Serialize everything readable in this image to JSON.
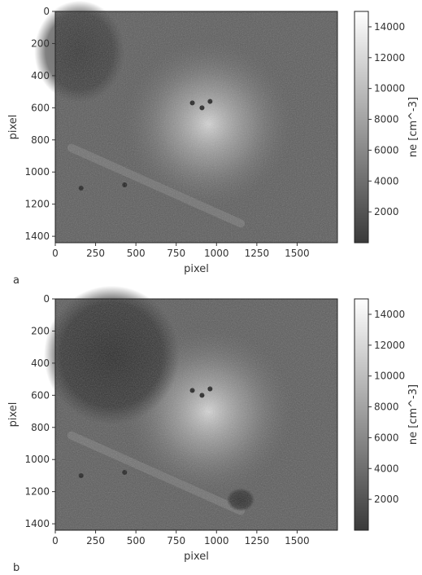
{
  "chart_data": [
    {
      "type": "heatmap",
      "panel_label": "a",
      "xlabel": "pixel",
      "ylabel": "pixel",
      "xlim": [
        0,
        1750
      ],
      "ylim": [
        1440,
        0
      ],
      "x_ticks": [
        0,
        250,
        500,
        750,
        1000,
        1250,
        1500
      ],
      "y_ticks": [
        0,
        200,
        400,
        600,
        800,
        1000,
        1200,
        1400
      ],
      "colorbar": {
        "label": "ne [cm^-3]",
        "range": [
          0,
          15000
        ],
        "ticks": [
          2000,
          4000,
          6000,
          8000,
          10000,
          12000,
          14000
        ],
        "colormap": "gray"
      },
      "features": {
        "bright_region_center": [
          950,
          700
        ],
        "dark_patches": [
          {
            "center": [
              150,
              250
            ],
            "extent": "small sparse"
          }
        ],
        "dark_spots": [
          [
            850,
            570
          ],
          [
            910,
            600
          ],
          [
            960,
            560
          ],
          [
            160,
            1100
          ],
          [
            430,
            1080
          ]
        ]
      }
    },
    {
      "type": "heatmap",
      "panel_label": "b",
      "xlabel": "pixel",
      "ylabel": "pixel",
      "xlim": [
        0,
        1750
      ],
      "ylim": [
        1440,
        0
      ],
      "x_ticks": [
        0,
        250,
        500,
        750,
        1000,
        1250,
        1500
      ],
      "y_ticks": [
        0,
        200,
        400,
        600,
        800,
        1000,
        1200,
        1400
      ],
      "colorbar": {
        "label": "ne [cm^-3]",
        "range": [
          0,
          15000
        ],
        "ticks": [
          2000,
          4000,
          6000,
          8000,
          10000,
          12000,
          14000
        ],
        "colormap": "gray"
      },
      "features": {
        "bright_region_center": [
          950,
          700
        ],
        "dark_patches": [
          {
            "center": [
              350,
              350
            ],
            "extent": "large dense"
          },
          {
            "center": [
              1150,
              1250
            ],
            "extent": "small"
          }
        ],
        "dark_spots": [
          [
            850,
            570
          ],
          [
            910,
            600
          ],
          [
            960,
            560
          ],
          [
            160,
            1100
          ],
          [
            430,
            1080
          ]
        ]
      }
    }
  ]
}
